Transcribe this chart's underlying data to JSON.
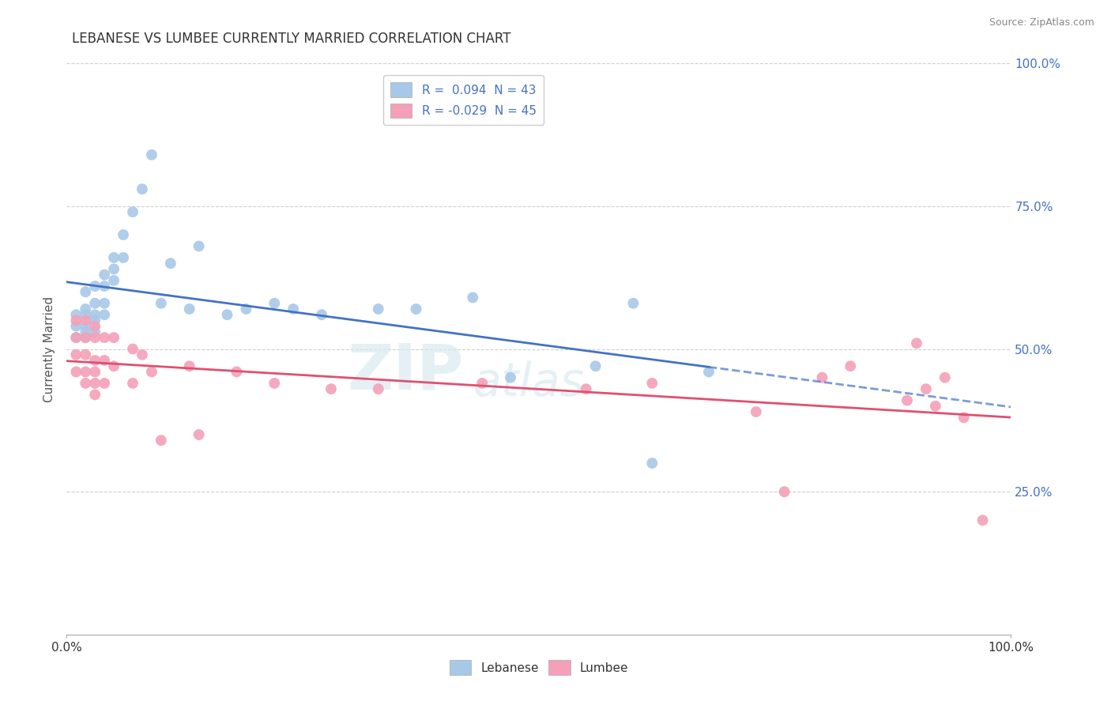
{
  "title": "LEBANESE VS LUMBEE CURRENTLY MARRIED CORRELATION CHART",
  "source": "Source: ZipAtlas.com",
  "ylabel": "Currently Married",
  "xlim": [
    0,
    1.0
  ],
  "ylim": [
    0,
    1.0
  ],
  "r_lebanese": 0.094,
  "n_lebanese": 43,
  "r_lumbee": -0.029,
  "n_lumbee": 45,
  "lebanese_color": "#a8c8e8",
  "lumbee_color": "#f4a0b8",
  "line_lebanese_color": "#4472c4",
  "line_lumbee_color": "#e05070",
  "watermark_zip": "ZIP",
  "watermark_atlas": "atlas",
  "lebanese_x": [
    0.01,
    0.01,
    0.01,
    0.02,
    0.02,
    0.02,
    0.02,
    0.02,
    0.02,
    0.03,
    0.03,
    0.03,
    0.03,
    0.03,
    0.04,
    0.04,
    0.04,
    0.04,
    0.05,
    0.05,
    0.05,
    0.06,
    0.06,
    0.07,
    0.08,
    0.09,
    0.1,
    0.11,
    0.13,
    0.14,
    0.17,
    0.19,
    0.22,
    0.24,
    0.27,
    0.33,
    0.37,
    0.43,
    0.47,
    0.56,
    0.6,
    0.62,
    0.68
  ],
  "lebanese_y": [
    0.56,
    0.54,
    0.52,
    0.6,
    0.57,
    0.56,
    0.54,
    0.53,
    0.52,
    0.61,
    0.58,
    0.56,
    0.55,
    0.53,
    0.63,
    0.61,
    0.58,
    0.56,
    0.66,
    0.64,
    0.62,
    0.7,
    0.66,
    0.74,
    0.78,
    0.84,
    0.58,
    0.65,
    0.57,
    0.68,
    0.56,
    0.57,
    0.58,
    0.57,
    0.56,
    0.57,
    0.57,
    0.59,
    0.45,
    0.47,
    0.58,
    0.3,
    0.46
  ],
  "lumbee_x": [
    0.01,
    0.01,
    0.01,
    0.01,
    0.02,
    0.02,
    0.02,
    0.02,
    0.02,
    0.03,
    0.03,
    0.03,
    0.03,
    0.03,
    0.03,
    0.04,
    0.04,
    0.04,
    0.05,
    0.05,
    0.07,
    0.07,
    0.08,
    0.09,
    0.1,
    0.13,
    0.14,
    0.18,
    0.22,
    0.28,
    0.33,
    0.44,
    0.55,
    0.62,
    0.73,
    0.76,
    0.8,
    0.83,
    0.89,
    0.9,
    0.91,
    0.92,
    0.93,
    0.95,
    0.97
  ],
  "lumbee_y": [
    0.55,
    0.52,
    0.49,
    0.46,
    0.55,
    0.52,
    0.49,
    0.46,
    0.44,
    0.54,
    0.52,
    0.48,
    0.46,
    0.44,
    0.42,
    0.52,
    0.48,
    0.44,
    0.52,
    0.47,
    0.5,
    0.44,
    0.49,
    0.46,
    0.34,
    0.47,
    0.35,
    0.46,
    0.44,
    0.43,
    0.43,
    0.44,
    0.43,
    0.44,
    0.39,
    0.25,
    0.45,
    0.47,
    0.41,
    0.51,
    0.43,
    0.4,
    0.45,
    0.38,
    0.2
  ],
  "background_color": "#ffffff",
  "grid_color": "#d0d0d0"
}
